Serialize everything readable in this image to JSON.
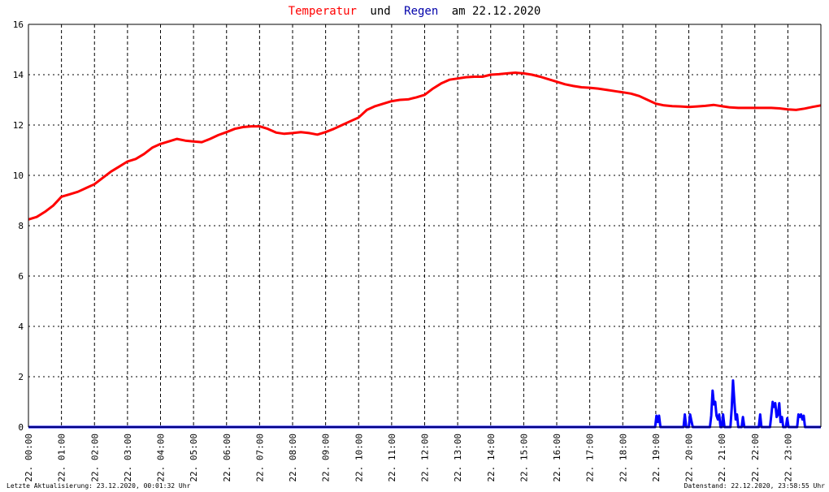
{
  "title": {
    "part1": "Temperatur",
    "part2": "und",
    "part3": "Regen",
    "part4": "am 22.12.2020"
  },
  "colors": {
    "temperature": "#ff0000",
    "rain": "#0000ff",
    "text": "#000000",
    "grid": "#000000"
  },
  "footer": {
    "left": "Letzte Aktualisierung: 23.12.2020, 00:01:32 Uhr",
    "right": "Datenstand: 22.12.2020, 23:58:55 Uhr"
  },
  "chart_data": {
    "type": "line",
    "title": "Temperatur und Regen am 22.12.2020",
    "xlabel": "",
    "ylabel": "",
    "ylim": [
      0,
      16
    ],
    "xlim": [
      0,
      24
    ],
    "grid": true,
    "yticks": [
      "0",
      "2",
      "4",
      "6",
      "8",
      "10",
      "12",
      "14",
      "16"
    ],
    "xticks": [
      "22. 00:00",
      "22. 01:00",
      "22. 02:00",
      "22. 03:00",
      "22. 04:00",
      "22. 05:00",
      "22. 06:00",
      "22. 07:00",
      "22. 08:00",
      "22. 09:00",
      "22. 10:00",
      "22. 11:00",
      "22. 12:00",
      "22. 13:00",
      "22. 14:00",
      "22. 15:00",
      "22. 16:00",
      "22. 17:00",
      "22. 18:00",
      "22. 19:00",
      "22. 20:00",
      "22. 21:00",
      "22. 22:00",
      "22. 23:00"
    ],
    "series": [
      {
        "name": "Temperatur",
        "color": "#ff0000",
        "points": [
          [
            0.0,
            8.25
          ],
          [
            0.25,
            8.35
          ],
          [
            0.5,
            8.55
          ],
          [
            0.75,
            8.8
          ],
          [
            1.0,
            9.15
          ],
          [
            1.25,
            9.25
          ],
          [
            1.5,
            9.35
          ],
          [
            1.75,
            9.5
          ],
          [
            2.0,
            9.65
          ],
          [
            2.25,
            9.9
          ],
          [
            2.5,
            10.15
          ],
          [
            2.75,
            10.35
          ],
          [
            3.0,
            10.55
          ],
          [
            3.25,
            10.65
          ],
          [
            3.5,
            10.85
          ],
          [
            3.75,
            11.1
          ],
          [
            4.0,
            11.25
          ],
          [
            4.25,
            11.35
          ],
          [
            4.5,
            11.45
          ],
          [
            4.75,
            11.38
          ],
          [
            5.0,
            11.35
          ],
          [
            5.25,
            11.32
          ],
          [
            5.5,
            11.45
          ],
          [
            5.75,
            11.6
          ],
          [
            6.0,
            11.72
          ],
          [
            6.25,
            11.85
          ],
          [
            6.5,
            11.92
          ],
          [
            6.75,
            11.95
          ],
          [
            7.0,
            11.95
          ],
          [
            7.25,
            11.85
          ],
          [
            7.5,
            11.7
          ],
          [
            7.75,
            11.65
          ],
          [
            8.0,
            11.68
          ],
          [
            8.25,
            11.72
          ],
          [
            8.5,
            11.68
          ],
          [
            8.75,
            11.62
          ],
          [
            9.0,
            11.72
          ],
          [
            9.25,
            11.85
          ],
          [
            9.5,
            12.0
          ],
          [
            9.75,
            12.15
          ],
          [
            10.0,
            12.3
          ],
          [
            10.25,
            12.6
          ],
          [
            10.5,
            12.75
          ],
          [
            10.75,
            12.85
          ],
          [
            11.0,
            12.95
          ],
          [
            11.25,
            13.0
          ],
          [
            11.5,
            13.02
          ],
          [
            11.75,
            13.1
          ],
          [
            12.0,
            13.2
          ],
          [
            12.25,
            13.45
          ],
          [
            12.5,
            13.65
          ],
          [
            12.75,
            13.8
          ],
          [
            13.0,
            13.85
          ],
          [
            13.25,
            13.9
          ],
          [
            13.5,
            13.92
          ],
          [
            13.75,
            13.92
          ],
          [
            14.0,
            14.0
          ],
          [
            14.25,
            14.02
          ],
          [
            14.5,
            14.05
          ],
          [
            14.75,
            14.08
          ],
          [
            15.0,
            14.05
          ],
          [
            15.25,
            14.0
          ],
          [
            15.5,
            13.92
          ],
          [
            15.75,
            13.82
          ],
          [
            16.0,
            13.72
          ],
          [
            16.25,
            13.62
          ],
          [
            16.5,
            13.55
          ],
          [
            16.75,
            13.5
          ],
          [
            17.0,
            13.48
          ],
          [
            17.25,
            13.45
          ],
          [
            17.5,
            13.4
          ],
          [
            17.75,
            13.35
          ],
          [
            18.0,
            13.3
          ],
          [
            18.25,
            13.25
          ],
          [
            18.5,
            13.15
          ],
          [
            18.75,
            13.0
          ],
          [
            19.0,
            12.85
          ],
          [
            19.25,
            12.78
          ],
          [
            19.5,
            12.75
          ],
          [
            19.75,
            12.74
          ],
          [
            20.0,
            12.72
          ],
          [
            20.25,
            12.74
          ],
          [
            20.5,
            12.76
          ],
          [
            20.75,
            12.8
          ],
          [
            21.0,
            12.75
          ],
          [
            21.25,
            12.7
          ],
          [
            21.5,
            12.68
          ],
          [
            21.75,
            12.68
          ],
          [
            22.0,
            12.68
          ],
          [
            22.25,
            12.68
          ],
          [
            22.5,
            12.68
          ],
          [
            22.75,
            12.66
          ],
          [
            23.0,
            12.62
          ],
          [
            23.25,
            12.6
          ],
          [
            23.5,
            12.65
          ],
          [
            23.75,
            12.72
          ],
          [
            24.0,
            12.78
          ]
        ]
      },
      {
        "name": "Regen",
        "color": "#0000ff",
        "points": [
          [
            0.0,
            0
          ],
          [
            18.98,
            0
          ],
          [
            19.02,
            0.45
          ],
          [
            19.06,
            0.2
          ],
          [
            19.1,
            0.45
          ],
          [
            19.14,
            0
          ],
          [
            19.84,
            0
          ],
          [
            19.88,
            0.5
          ],
          [
            19.92,
            0
          ],
          [
            20.0,
            0
          ],
          [
            20.04,
            0.5
          ],
          [
            20.08,
            0.25
          ],
          [
            20.12,
            0
          ],
          [
            20.64,
            0
          ],
          [
            20.68,
            0.45
          ],
          [
            20.72,
            1.45
          ],
          [
            20.76,
            0.9
          ],
          [
            20.8,
            1.0
          ],
          [
            20.84,
            0.45
          ],
          [
            20.88,
            0.3
          ],
          [
            20.92,
            0.5
          ],
          [
            20.96,
            0
          ],
          [
            21.0,
            0
          ],
          [
            21.04,
            0.5
          ],
          [
            21.08,
            0
          ],
          [
            21.26,
            0
          ],
          [
            21.3,
            0.75
          ],
          [
            21.34,
            1.85
          ],
          [
            21.38,
            1.0
          ],
          [
            21.42,
            0.3
          ],
          [
            21.46,
            0.5
          ],
          [
            21.5,
            0
          ],
          [
            21.6,
            0
          ],
          [
            21.64,
            0.4
          ],
          [
            21.68,
            0
          ],
          [
            22.12,
            0
          ],
          [
            22.16,
            0.5
          ],
          [
            22.2,
            0
          ],
          [
            22.46,
            0
          ],
          [
            22.5,
            0.5
          ],
          [
            22.54,
            1.0
          ],
          [
            22.58,
            0.8
          ],
          [
            22.62,
            0.95
          ],
          [
            22.66,
            0.4
          ],
          [
            22.7,
            0.5
          ],
          [
            22.74,
            0.95
          ],
          [
            22.78,
            0.2
          ],
          [
            22.82,
            0.4
          ],
          [
            22.86,
            0
          ],
          [
            22.94,
            0
          ],
          [
            22.98,
            0.35
          ],
          [
            23.02,
            0
          ],
          [
            23.28,
            0
          ],
          [
            23.32,
            0.5
          ],
          [
            23.36,
            0.4
          ],
          [
            23.4,
            0.5
          ],
          [
            23.44,
            0.3
          ],
          [
            23.48,
            0.45
          ],
          [
            23.52,
            0
          ],
          [
            24.0,
            0
          ]
        ]
      }
    ]
  }
}
